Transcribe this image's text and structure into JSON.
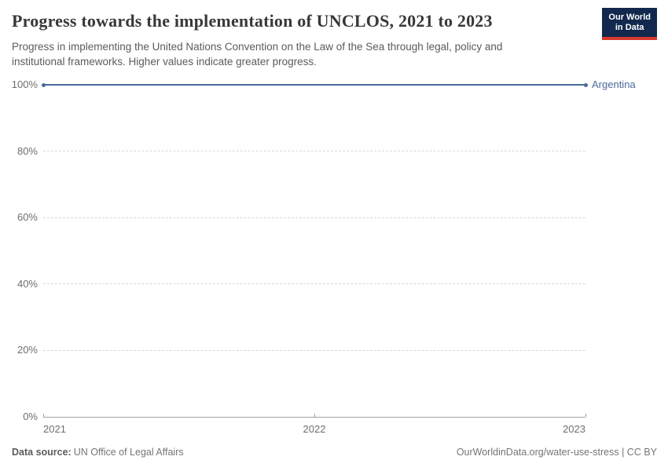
{
  "header": {
    "title": "Progress towards the implementation of UNCLOS, 2021 to 2023",
    "subtitle": "Progress in implementing the United Nations Convention on the Law of the Sea through legal, policy and institutional frameworks. Higher values indicate greater progress.",
    "logo": {
      "line1": "Our World",
      "line2": "in Data"
    }
  },
  "chart_data": {
    "type": "line",
    "title": "Progress towards the implementation of UNCLOS, 2021 to 2023",
    "x": [
      2021,
      2022,
      2023
    ],
    "x_tick_labels": [
      "2021",
      "2022",
      "2023"
    ],
    "series": [
      {
        "name": "Argentina",
        "values": [
          100,
          100,
          100
        ],
        "color": "#4C6A9C",
        "end_markers": true
      }
    ],
    "xlabel": "",
    "ylabel": "",
    "ylim": [
      0,
      100
    ],
    "y_ticks": [
      {
        "value": 0,
        "label": "0%"
      },
      {
        "value": 20,
        "label": "20%"
      },
      {
        "value": 40,
        "label": "40%"
      },
      {
        "value": 60,
        "label": "60%"
      },
      {
        "value": 80,
        "label": "80%"
      },
      {
        "value": 100,
        "label": "100%"
      }
    ],
    "grid": "horizontal-dashed",
    "legend_position": "end-of-line"
  },
  "colors": {
    "line": "#4C6A9C",
    "grid": "#d9d9d9",
    "axis": "#a1a1a1",
    "tick_label": "#6e6e6e",
    "logo_bg": "#12294d",
    "logo_stripe": "#d7382c"
  },
  "footer": {
    "datasource_label": "Data source:",
    "datasource_value": "UN Office of Legal Affairs",
    "attribution": "OurWorldinData.org/water-use-stress | CC BY"
  }
}
